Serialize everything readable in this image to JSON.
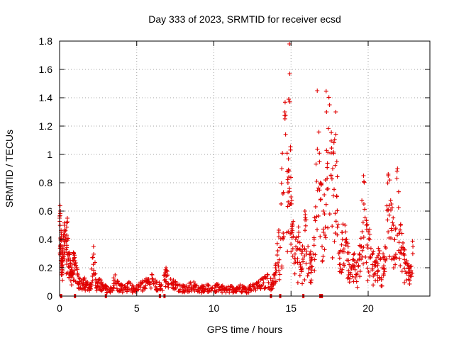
{
  "chart_data": {
    "type": "scatter",
    "title": "Day 333 of 2023, SRMTID for receiver ecsd",
    "xlabel": "GPS time / hours",
    "ylabel": "SRMTID / TECUs",
    "xlim": [
      0,
      24
    ],
    "ylim": [
      0,
      1.8
    ],
    "xticks": [
      0,
      5,
      10,
      15,
      20
    ],
    "yticks": [
      0,
      0.2,
      0.4,
      0.6,
      0.8,
      1,
      1.2,
      1.4,
      1.6,
      1.8
    ],
    "xtick_labels": [
      "0",
      "5",
      "10",
      "15",
      "20"
    ],
    "ytick_labels": [
      "0",
      "0.2",
      "0.4",
      "0.6",
      "0.8",
      "1",
      "1.2",
      "1.4",
      "1.6",
      "1.8"
    ],
    "grid": true,
    "marker": "+",
    "series": [
      {
        "name": "SRMTID",
        "color": "#e00000",
        "x": [
          0.0,
          0.05,
          0.1,
          0.15,
          0.2,
          0.3,
          0.4,
          0.5,
          0.6,
          0.7,
          0.8,
          0.9,
          1.0,
          1.2,
          1.4,
          1.6,
          1.8,
          2.0,
          2.2,
          2.4,
          2.6,
          2.8,
          3.0,
          3.3,
          3.6,
          3.9,
          4.2,
          4.5,
          4.8,
          5.1,
          5.4,
          5.7,
          6.0,
          6.3,
          6.6,
          6.9,
          7.2,
          7.5,
          7.8,
          8.1,
          8.4,
          8.7,
          9.0,
          9.3,
          9.6,
          9.9,
          10.2,
          10.5,
          10.8,
          11.1,
          11.4,
          11.7,
          12.0,
          12.3,
          12.6,
          12.9,
          13.2,
          13.5,
          13.8,
          14.0,
          14.2,
          14.4,
          14.6,
          14.8,
          14.9,
          15.0,
          15.1,
          15.3,
          15.5,
          15.7,
          15.9,
          16.1,
          16.3,
          16.5,
          16.7,
          16.9,
          17.1,
          17.3,
          17.5,
          17.7,
          17.9,
          18.1,
          18.3,
          18.5,
          18.7,
          18.9,
          19.1,
          19.3,
          19.5,
          19.7,
          19.9,
          20.1,
          20.3,
          20.5,
          20.7,
          20.9,
          21.1,
          21.3,
          21.5,
          21.7,
          21.9,
          22.1,
          22.3,
          22.5,
          22.7,
          22.9
        ],
        "y": [
          0.55,
          0.6,
          0.45,
          0.35,
          0.3,
          0.5,
          0.4,
          0.55,
          0.3,
          0.25,
          0.2,
          0.3,
          0.25,
          0.15,
          0.1,
          0.12,
          0.1,
          0.08,
          0.35,
          0.1,
          0.12,
          0.08,
          0.07,
          0.06,
          0.15,
          0.08,
          0.07,
          0.1,
          0.06,
          0.08,
          0.1,
          0.12,
          0.15,
          0.1,
          0.08,
          0.2,
          0.12,
          0.1,
          0.08,
          0.07,
          0.09,
          0.1,
          0.06,
          0.07,
          0.08,
          0.06,
          0.08,
          0.07,
          0.06,
          0.07,
          0.05,
          0.08,
          0.06,
          0.07,
          0.08,
          0.1,
          0.12,
          0.15,
          0.1,
          0.2,
          0.45,
          0.9,
          1.3,
          0.8,
          1.78,
          0.7,
          0.5,
          0.4,
          0.45,
          0.3,
          0.6,
          0.35,
          0.25,
          0.4,
          1.45,
          0.8,
          0.6,
          1.3,
          1.35,
          0.9,
          1.3,
          0.3,
          0.45,
          0.5,
          0.35,
          0.2,
          0.3,
          0.25,
          0.35,
          0.85,
          0.5,
          0.4,
          0.3,
          0.25,
          0.3,
          0.2,
          0.35,
          0.85,
          0.65,
          0.4,
          0.9,
          0.5,
          0.3,
          0.25,
          0.2,
          0.35
        ],
        "zero_marks_x": [
          0.1,
          1.0,
          3.0,
          6.5,
          6.8,
          13.7,
          14.3,
          15.8,
          16.9,
          17.0
        ]
      }
    ]
  }
}
